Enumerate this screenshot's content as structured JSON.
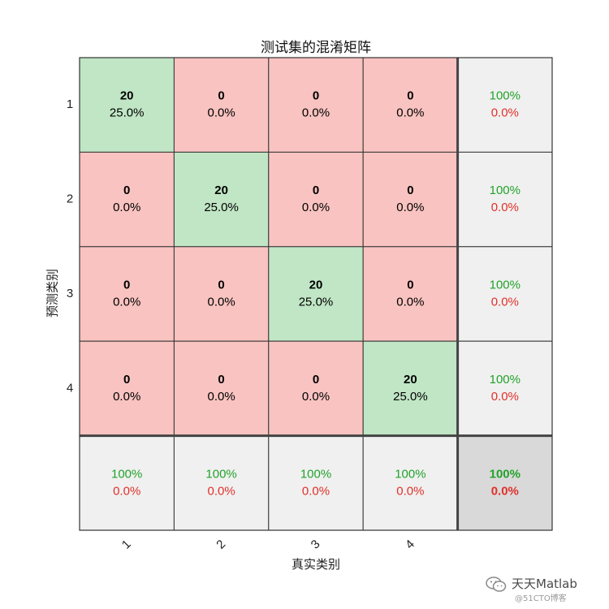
{
  "chart_data": {
    "type": "heatmap",
    "title": "测试集的混淆矩阵",
    "xlabel": "真实类别",
    "ylabel": "预测类别",
    "classes": [
      "1",
      "2",
      "3",
      "4"
    ],
    "matrix": [
      [
        20,
        0,
        0,
        0
      ],
      [
        0,
        20,
        0,
        0
      ],
      [
        0,
        0,
        20,
        0
      ],
      [
        0,
        0,
        0,
        20
      ]
    ],
    "percent": [
      [
        "25.0%",
        "0.0%",
        "0.0%",
        "0.0%"
      ],
      [
        "0.0%",
        "25.0%",
        "0.0%",
        "0.0%"
      ],
      [
        "0.0%",
        "0.0%",
        "25.0%",
        "0.0%"
      ],
      [
        "0.0%",
        "0.0%",
        "0.0%",
        "25.0%"
      ]
    ],
    "row_summary": [
      {
        "correct": "100%",
        "incorrect": "0.0%"
      },
      {
        "correct": "100%",
        "incorrect": "0.0%"
      },
      {
        "correct": "100%",
        "incorrect": "0.0%"
      },
      {
        "correct": "100%",
        "incorrect": "0.0%"
      }
    ],
    "col_summary": [
      {
        "correct": "100%",
        "incorrect": "0.0%"
      },
      {
        "correct": "100%",
        "incorrect": "0.0%"
      },
      {
        "correct": "100%",
        "incorrect": "0.0%"
      },
      {
        "correct": "100%",
        "incorrect": "0.0%"
      }
    ],
    "overall": {
      "correct": "100%",
      "incorrect": "0.0%"
    },
    "colors": {
      "diagonal": "#c0e6c5",
      "off_diagonal": "#f8c3c0",
      "summary": "#f0f0f0",
      "overall": "#d9d9d9",
      "correct_text": "#22a22a",
      "incorrect_text": "#e0302a",
      "grid": "#333333"
    }
  },
  "watermark": {
    "name": "天天Matlab",
    "site": "@51CTO博客",
    "icon": "wechat-icon"
  }
}
